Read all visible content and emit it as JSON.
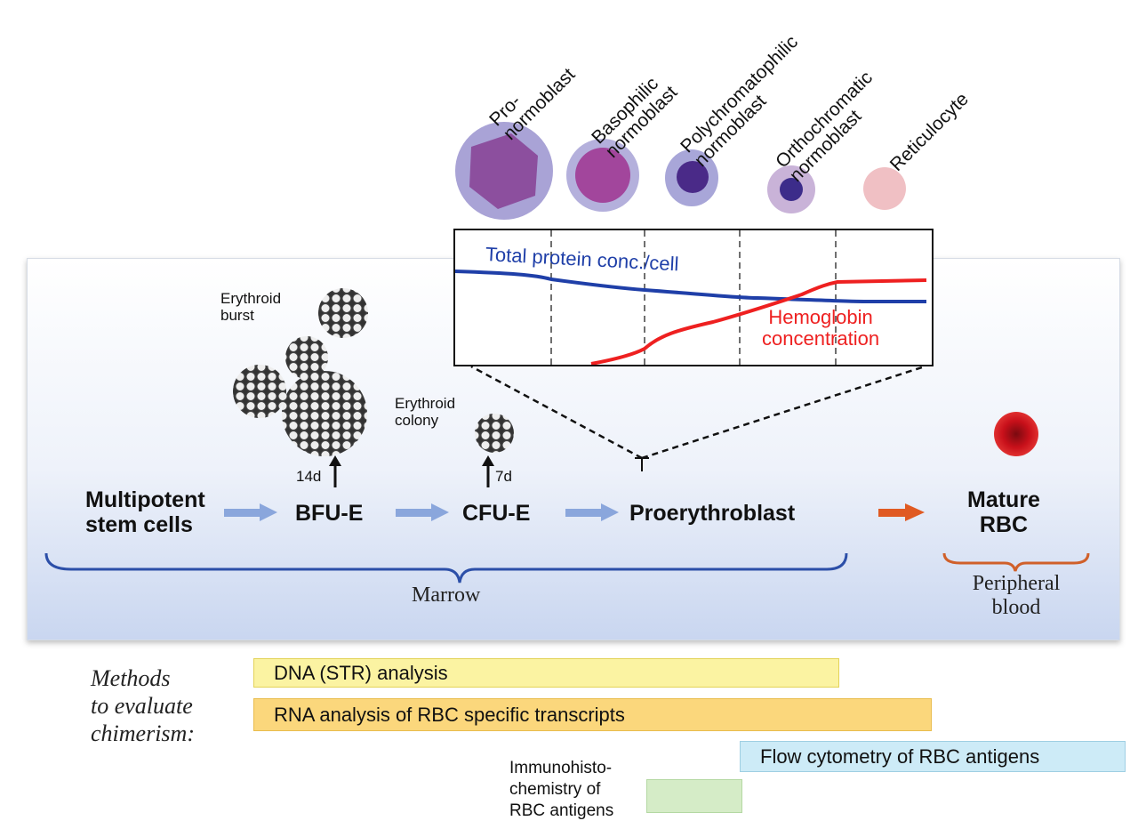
{
  "cells": [
    {
      "label_lines": [
        "Pro-",
        "normoblast"
      ]
    },
    {
      "label_lines": [
        "Basophilic",
        "normoblast"
      ]
    },
    {
      "label_lines": [
        "Polychromatophilic",
        "normoblast"
      ]
    },
    {
      "label_lines": [
        "Orthochromatic",
        "normoblast"
      ]
    },
    {
      "label_lines": [
        "Reticulocyte"
      ]
    }
  ],
  "chart": {
    "series": [
      {
        "name": "Total protein conc./cell",
        "color": "#1f3fa8"
      },
      {
        "name_lines": [
          "Hemoglobin",
          "concentration"
        ],
        "color": "#ee2020"
      }
    ]
  },
  "colonies": {
    "burst_lines": [
      "Erythroid",
      "burst"
    ],
    "colony_lines": [
      "Erythroid",
      "colony"
    ],
    "burst_time": "14d",
    "colony_time": "7d"
  },
  "stages": {
    "stem_lines": [
      "Multipotent",
      "stem cells"
    ],
    "bfu": "BFU-E",
    "cfu": "CFU-E",
    "proery": "Proerythroblast",
    "rbc_lines": [
      "Mature",
      "RBC"
    ]
  },
  "regions": {
    "marrow": "Marrow",
    "blood_lines": [
      "Peripheral",
      "blood"
    ]
  },
  "methods": {
    "title_lines": [
      "Methods",
      "to evaluate",
      "chimerism:"
    ],
    "dna": "DNA (STR) analysis",
    "rna": "RNA analysis of RBC specific transcripts",
    "flow": "Flow cytometry of RBC antigens",
    "immuno_lines": [
      "Immunohisto-",
      "chemistry of",
      "RBC antigens"
    ]
  },
  "colors": {
    "arrow_blue": "#8aa6dc",
    "arrow_orange": "#e05a22",
    "brace_blue": "#2c4fa8",
    "brace_orange": "#d0602a"
  }
}
